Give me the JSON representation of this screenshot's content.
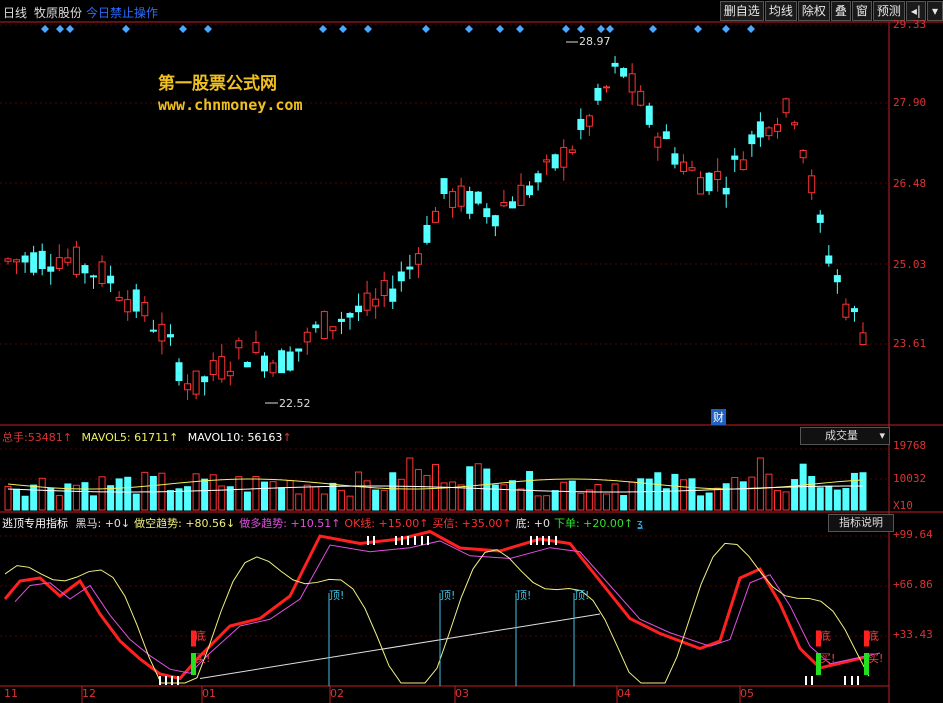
{
  "topbar": {
    "period": "日线",
    "stock_name": "牧原股份",
    "notice": "今日禁止操作",
    "buttons": [
      "删自选",
      "均线",
      "除权",
      "叠",
      "窗",
      "预测"
    ],
    "nav_icon": "arrow-left-bar-icon",
    "dropdown_icon": "triangle-down-icon"
  },
  "watermark": {
    "title": "第一股票公式网",
    "url": "www.chnmoney.com"
  },
  "price_axis": [
    "29.33",
    "27.90",
    "26.48",
    "25.03",
    "23.61"
  ],
  "annotations": {
    "high": "28.97",
    "low": "22.52",
    "finance_badge": "财"
  },
  "volume_panel": {
    "label_total": "总手:",
    "total": "53481",
    "label_mavol5": "MAVOL5:",
    "mavol5": "61711",
    "label_mavol10": "MAVOL10:",
    "mavol10": "56163",
    "arrow": "↑",
    "combo": "成交量",
    "axis": [
      "19768",
      "10032"
    ],
    "unit": "X10"
  },
  "indicator_panel": {
    "name": "逃顶专用指标",
    "items": [
      {
        "label": "黑马:",
        "value": "+0",
        "arrow": "↓",
        "color": "#e0e0e0"
      },
      {
        "label": "做空趋势:",
        "value": "+80.56",
        "arrow": "↓",
        "color": "#f0f080"
      },
      {
        "label": "做多趋势:",
        "value": "+10.51",
        "arrow": "↑",
        "color": "#e050e0"
      },
      {
        "label": "OK线:",
        "value": "+15.00",
        "arrow": "↑",
        "color": "#ff3030"
      },
      {
        "label": "买信:",
        "value": "+35.00",
        "arrow": "↑",
        "color": "#ff3030"
      },
      {
        "label": "底:",
        "value": "+0",
        "arrow": "",
        "color": "#e0e0e0"
      },
      {
        "label": "下单:",
        "value": "+20.00",
        "arrow": "↑",
        "color": "#30e030"
      }
    ],
    "extra_icon": "hook-icon",
    "button": "指标说明",
    "axis": [
      "+99.64",
      "+66.86",
      "+33.43"
    ],
    "top_label": "顶!",
    "bottom_label": "底",
    "buy_label": "买!"
  },
  "months": [
    "11",
    "12",
    "01",
    "02",
    "03",
    "04",
    "05"
  ],
  "colors": {
    "up": "#ff3232",
    "down": "#54ffff",
    "axis": "#c02020",
    "diamond": "#4aa8ff"
  }
}
